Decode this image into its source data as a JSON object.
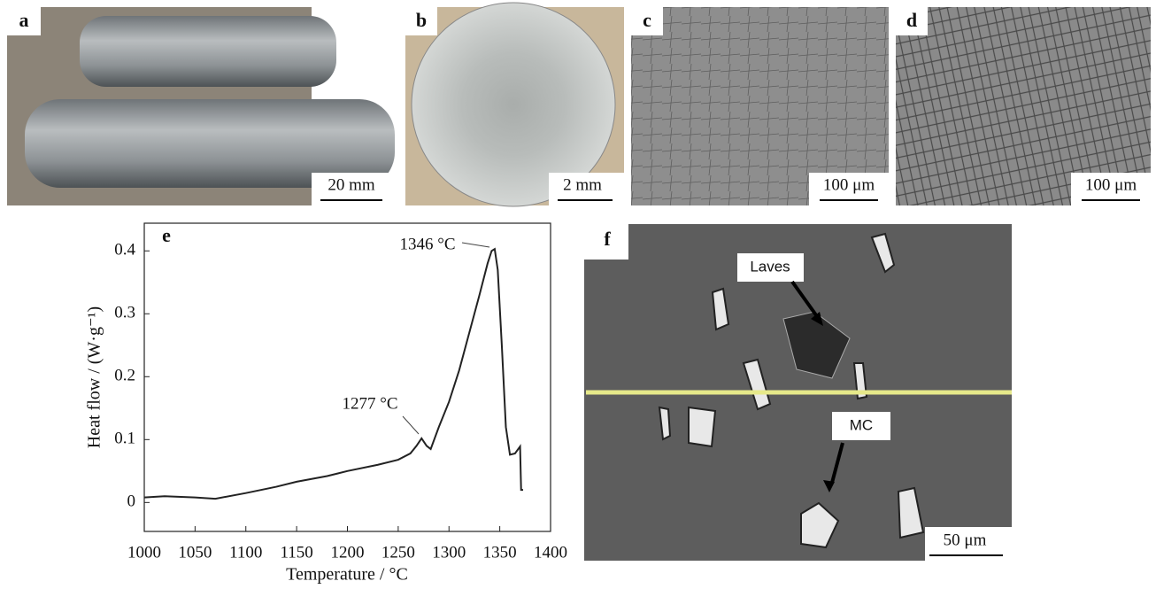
{
  "panels": [
    {
      "label": "a",
      "scale_bar": "20 mm"
    },
    {
      "label": "b",
      "scale_bar": "2 mm"
    },
    {
      "label": "c",
      "scale_bar": "100 μm"
    },
    {
      "label": "d",
      "scale_bar": "100 μm"
    },
    {
      "label": "f",
      "scale_bar": "50 μm",
      "annotations": [
        "Laves",
        "MC"
      ]
    }
  ],
  "chart_data": {
    "type": "line",
    "panel_label": "e",
    "x_label": "Temperature / °C",
    "y_label": "Heat flow / (W·g⁻¹)",
    "x": [
      1000,
      1020,
      1050,
      1070,
      1100,
      1130,
      1150,
      1180,
      1200,
      1230,
      1250,
      1262,
      1268,
      1273,
      1278,
      1282,
      1290,
      1300,
      1310,
      1320,
      1330,
      1338,
      1342,
      1345,
      1348,
      1352,
      1356,
      1360,
      1365,
      1370,
      1371,
      1373
    ],
    "values": [
      0.008,
      0.01,
      0.008,
      0.006,
      0.015,
      0.025,
      0.033,
      0.042,
      0.05,
      0.06,
      0.068,
      0.078,
      0.09,
      0.102,
      0.09,
      0.085,
      0.12,
      0.16,
      0.21,
      0.27,
      0.33,
      0.38,
      0.4,
      0.403,
      0.37,
      0.25,
      0.12,
      0.076,
      0.078,
      0.089,
      0.02,
      0.02
    ],
    "color": "#222222",
    "xlim": [
      1000,
      1400
    ],
    "ylim": [
      -0.046,
      0.444
    ],
    "xticks": [
      1000,
      1050,
      1100,
      1150,
      1200,
      1250,
      1300,
      1350,
      1400
    ],
    "yticks": [
      0,
      0.1,
      0.2,
      0.3,
      0.4
    ],
    "annotations": [
      "1346 °C",
      "1277 °C"
    ]
  }
}
